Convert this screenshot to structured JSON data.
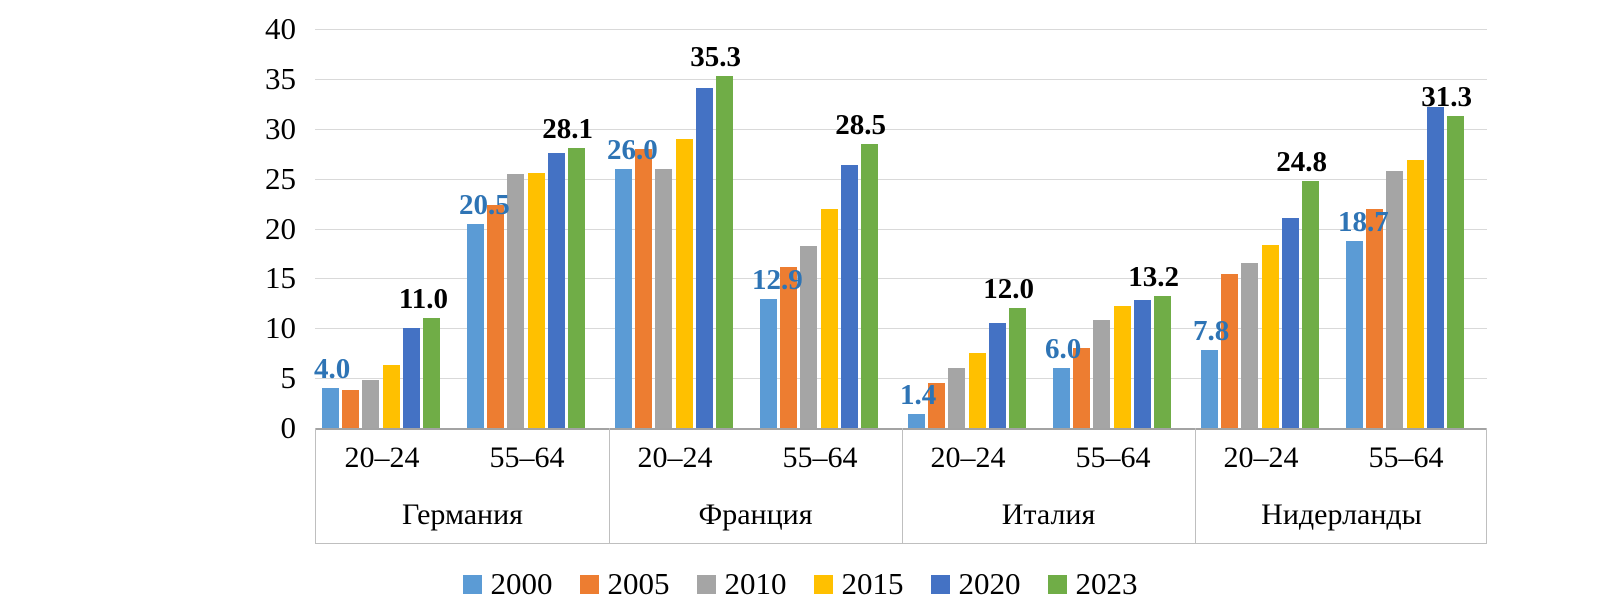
{
  "chart_data": {
    "type": "bar",
    "title": "",
    "xlabel": "",
    "ylabel": "",
    "ylim": [
      0,
      40
    ],
    "yticks": [
      0,
      5,
      10,
      15,
      20,
      25,
      30,
      35,
      40
    ],
    "grid": true,
    "legend_position": "bottom",
    "series": [
      {
        "name": "2000",
        "color": "#5B9BD5"
      },
      {
        "name": "2005",
        "color": "#ED7D31"
      },
      {
        "name": "2010",
        "color": "#A5A5A5"
      },
      {
        "name": "2015",
        "color": "#FFC000"
      },
      {
        "name": "2020",
        "color": "#4472C4"
      },
      {
        "name": "2023",
        "color": "#70AD47"
      }
    ],
    "label_colors": {
      "first_series": "#2E74B5",
      "last_series": "#538135"
    },
    "groups": [
      {
        "country": "Германия",
        "clusters": [
          {
            "age": "20–24",
            "values": [
              4.0,
              3.8,
              4.8,
              6.3,
              10.0,
              11.0
            ],
            "shown_labels": {
              "first": "4.0",
              "last": "11.0"
            }
          },
          {
            "age": "55–64",
            "values": [
              20.5,
              22.4,
              25.5,
              25.6,
              27.6,
              28.1
            ],
            "shown_labels": {
              "first": "20.5",
              "last": "28.1"
            }
          }
        ]
      },
      {
        "country": "Франция",
        "clusters": [
          {
            "age": "20–24",
            "values": [
              26.0,
              28.0,
              26.0,
              29.0,
              34.1,
              35.3
            ],
            "shown_labels": {
              "first": "26.0",
              "last": "35.3"
            }
          },
          {
            "age": "55–64",
            "values": [
              12.9,
              16.1,
              18.2,
              22.0,
              26.4,
              28.5
            ],
            "shown_labels": {
              "first": "12.9",
              "last": "28.5"
            }
          }
        ]
      },
      {
        "country": "Италия",
        "clusters": [
          {
            "age": "20–24",
            "values": [
              1.4,
              4.5,
              6.0,
              7.5,
              10.5,
              12.0
            ],
            "shown_labels": {
              "first": "1.4",
              "last": "12.0"
            }
          },
          {
            "age": "55–64",
            "values": [
              6.0,
              8.0,
              10.8,
              12.2,
              12.8,
              13.2
            ],
            "shown_labels": {
              "first": "6.0",
              "last": "13.2"
            }
          }
        ]
      },
      {
        "country": "Нидерланды",
        "clusters": [
          {
            "age": "20–24",
            "values": [
              7.8,
              15.4,
              16.5,
              18.3,
              21.1,
              24.8
            ],
            "shown_labels": {
              "first": "7.8",
              "last": "24.8"
            }
          },
          {
            "age": "55–64",
            "values": [
              18.7,
              22.0,
              25.8,
              26.9,
              32.2,
              31.3
            ],
            "shown_labels": {
              "first": "18.7",
              "last": "31.3"
            }
          }
        ]
      }
    ],
    "colors": {
      "gridline": "#D9D9D9",
      "axis_line": "#A3A3A3",
      "band_border": "#BFBFBF",
      "text": "#000000"
    }
  }
}
